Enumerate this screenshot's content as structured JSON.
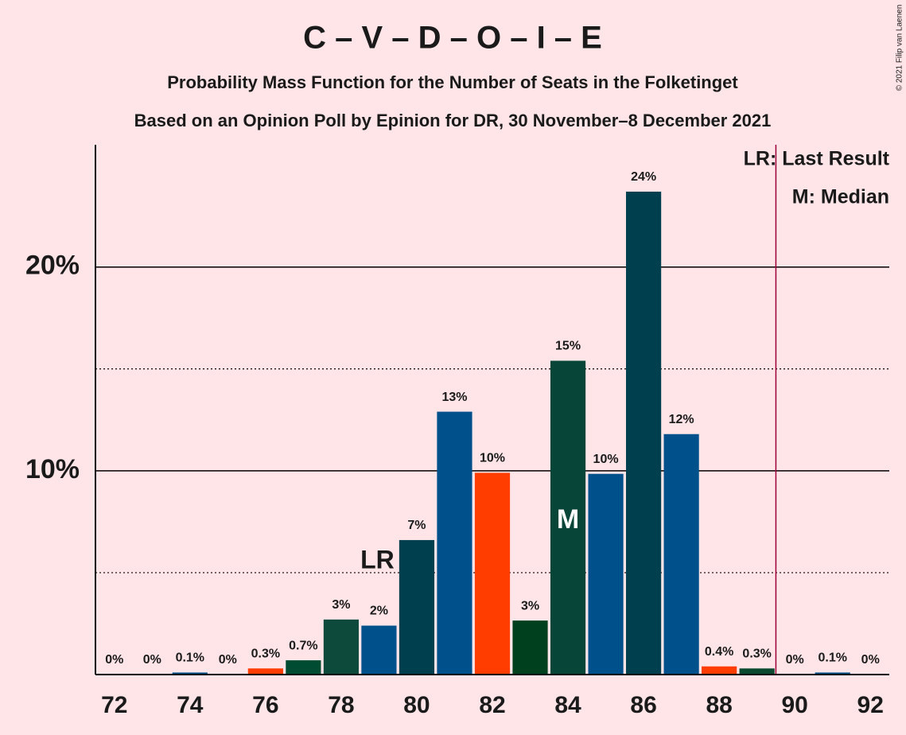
{
  "chart_data": {
    "type": "bar",
    "title": "C – V – D – O – I – E",
    "subtitle": "Probability Mass Function for the Number of Seats in the Folketinget",
    "subtitle2": "Based on an Opinion Poll by Epinion for DR, 30 November–8 December 2021",
    "copyright": "© 2021 Filip van Laenen",
    "legend": [
      "LR: Last Result",
      "M: Median"
    ],
    "x": [
      72,
      73,
      74,
      75,
      76,
      77,
      78,
      79,
      80,
      81,
      82,
      83,
      84,
      85,
      86,
      87,
      88,
      89,
      90,
      91,
      92
    ],
    "values": [
      0,
      0,
      0.1,
      0,
      0.3,
      0.7,
      2.7,
      2.4,
      6.6,
      12.9,
      9.9,
      2.65,
      15.4,
      9.85,
      23.7,
      11.8,
      0.4,
      0.3,
      0,
      0.1,
      0
    ],
    "value_labels": [
      "0%",
      "0%",
      "0.1%",
      "0%",
      "0.3%",
      "0.7%",
      "3%",
      "2%",
      "7%",
      "13%",
      "10%",
      "3%",
      "15%",
      "10%",
      "24%",
      "12%",
      "0.4%",
      "0.3%",
      "0%",
      "0.1%",
      "0%"
    ],
    "colors": [
      "#0b4a30",
      "#003f4e",
      "#00508c",
      "#0b4a30",
      "#ff3d00",
      "#004c33",
      "#0e4a3c",
      "#00508c",
      "#003f4e",
      "#00508c",
      "#ff3d00",
      "#00401f",
      "#074538",
      "#00508c",
      "#003f4e",
      "#00508c",
      "#ff3d00",
      "#0b4a30",
      "#003f4e",
      "#00508c",
      "#0b4a30"
    ],
    "xlim": [
      71.5,
      92.5
    ],
    "xticks": [
      72,
      74,
      76,
      78,
      80,
      82,
      84,
      86,
      88,
      90,
      92
    ],
    "ylim": [
      0,
      26
    ],
    "yticks": [
      {
        "value": 10,
        "label": "10%"
      },
      {
        "value": 20,
        "label": "20%"
      }
    ],
    "minor_grid": [
      5,
      15
    ],
    "annotations": [
      {
        "text": "LR",
        "x": 79
      },
      {
        "text": "M",
        "x": 84
      }
    ],
    "threshold_x": 89.5
  }
}
